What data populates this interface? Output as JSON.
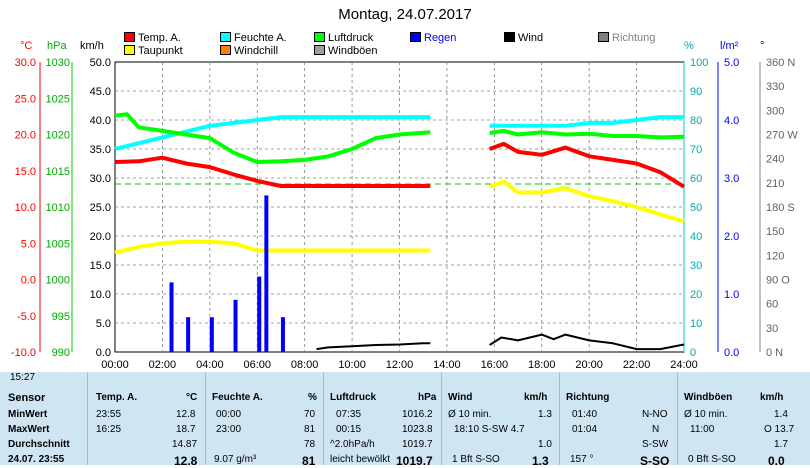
{
  "title": "Montag, 24.07.2017",
  "legend": [
    {
      "label": "Temp. A.",
      "color": "#ff0000"
    },
    {
      "label": "Feuchte A.",
      "color": "#00ffff"
    },
    {
      "label": "Luftdruck",
      "color": "#00ff00"
    },
    {
      "label": "Regen",
      "color": "#0000ff"
    },
    {
      "label": "Wind",
      "color": "#000000"
    },
    {
      "label": "Richtung",
      "color": "#808080"
    },
    {
      "label": "Taupunkt",
      "color": "#ffff00"
    },
    {
      "label": "Windchill",
      "color": "#ff8000"
    },
    {
      "label": "Windböen",
      "color": "#a0a0a0"
    }
  ],
  "axis_headers": {
    "c": "°C",
    "hpa": "hPa",
    "kmh": "km/h",
    "pct": "%",
    "lm2": "l/m²",
    "deg": "°"
  },
  "axes": {
    "temp": [
      "30.0",
      "25.0",
      "20.0",
      "15.0",
      "10.0",
      "5.0",
      "0.0",
      "-5.0",
      "-10.0"
    ],
    "hpa": [
      "1030",
      "1025",
      "1020",
      "1015",
      "1010",
      "1005",
      "1000",
      "995",
      "990"
    ],
    "kmh": [
      "50.0",
      "45.0",
      "40.0",
      "35.0",
      "30.0",
      "25.0",
      "20.0",
      "15.0",
      "10.0",
      "5.0",
      "0.0"
    ],
    "pct": [
      "100",
      "90",
      "80",
      "70",
      "60",
      "50",
      "40",
      "30",
      "20",
      "10",
      "0"
    ],
    "lm2": [
      "5.0",
      "4.0",
      "3.0",
      "2.0",
      "1.0",
      "0.0"
    ],
    "deg": [
      "360 N",
      "330",
      "300",
      "270 W",
      "240",
      "210",
      "180 S",
      "150",
      "120",
      "90 O",
      "60",
      "30",
      "0 N"
    ],
    "time": [
      "00:00",
      "02:00",
      "04:00",
      "06:00",
      "08:00",
      "10:00",
      "12:00",
      "14:00",
      "16:00",
      "18:00",
      "20:00",
      "22:00",
      "24:00"
    ]
  },
  "chart_data": {
    "type": "line",
    "x_unit": "hour",
    "series": [
      {
        "name": "Temp. A.",
        "color": "#ff0000",
        "x": [
          0,
          1,
          2,
          3,
          4,
          5,
          6,
          7,
          8,
          9,
          10,
          11,
          12,
          13.3,
          15.8,
          16.4,
          17,
          18,
          19,
          20,
          21,
          22,
          23,
          24
        ],
        "y": [
          16.2,
          16.3,
          16.8,
          16.0,
          15.5,
          14.5,
          13.6,
          12.9,
          12.9,
          12.9,
          12.9,
          12.9,
          12.9,
          12.9,
          18.0,
          18.7,
          17.6,
          17.2,
          18.2,
          17.0,
          16.5,
          16.0,
          14.8,
          12.8
        ]
      },
      {
        "name": "Taupunkt",
        "color": "#ffff00",
        "x": [
          0,
          1,
          2,
          3,
          4,
          5,
          6,
          7,
          8,
          9,
          10,
          11,
          12,
          13.3,
          15.8,
          16.4,
          17,
          18,
          19,
          20,
          21,
          22,
          23,
          24
        ],
        "y": [
          3.7,
          4.5,
          5.0,
          5.2,
          5.2,
          5.0,
          4.0,
          4.0,
          4.0,
          4.0,
          4.0,
          4.0,
          4.0,
          4.0,
          12.8,
          13.5,
          12.0,
          12.0,
          12.6,
          11.5,
          10.8,
          10.0,
          9.0,
          8.0
        ]
      },
      {
        "name": "Feuchte A.",
        "color": "#00ffff",
        "x": [
          0,
          1,
          2,
          3,
          4,
          5,
          6,
          7,
          8,
          9,
          10,
          11,
          12,
          13.3,
          15.8,
          17,
          18,
          19,
          20,
          21,
          22,
          23,
          24
        ],
        "y": [
          70,
          72,
          74,
          76,
          78,
          79,
          80,
          81,
          81,
          81,
          81,
          81,
          81,
          81,
          78,
          78,
          78,
          78,
          79,
          79,
          80,
          81,
          81
        ]
      },
      {
        "name": "Luftdruck",
        "color": "#00ff00",
        "x": [
          0,
          0.5,
          1,
          2,
          3,
          4,
          5,
          6,
          7,
          8,
          9,
          10,
          11,
          12,
          13.3,
          15.8,
          16.4,
          17,
          18,
          19,
          20,
          21,
          22,
          23,
          24
        ],
        "y": [
          1022.6,
          1022.8,
          1021.0,
          1020.5,
          1020.0,
          1019.5,
          1017.5,
          1016.2,
          1016.3,
          1016.5,
          1017.0,
          1018.0,
          1019.5,
          1020.0,
          1020.3,
          1020.2,
          1020.5,
          1020.0,
          1020.3,
          1020.0,
          1020.1,
          1019.8,
          1019.8,
          1019.6,
          1019.7
        ]
      },
      {
        "name": "Wind",
        "color": "#000000",
        "x": [
          8.5,
          9,
          10,
          11,
          12,
          13,
          13.3,
          15.8,
          16.3,
          17,
          18,
          18.5,
          19,
          20,
          21,
          22,
          23,
          24
        ],
        "y": [
          0.5,
          0.8,
          1.0,
          1.2,
          1.3,
          1.5,
          1.5,
          1.2,
          2.5,
          2.0,
          3.0,
          2.2,
          3.0,
          2.0,
          1.5,
          0.5,
          0.5,
          1.3
        ]
      },
      {
        "name": "Regen",
        "color": "#0000ff",
        "x": [
          2.3,
          3,
          4,
          5,
          6,
          6.3,
          7
        ],
        "y": [
          1.2,
          0.6,
          0.6,
          0.9,
          1.3,
          2.7,
          0.6
        ]
      }
    ]
  },
  "status": {
    "badge_time": "15:27",
    "rows": [
      "Sensor",
      "MinWert",
      "MaxWert",
      "Durchschnitt",
      "24.07. 23:55"
    ],
    "temp": {
      "head": "Temp. A.",
      "unit": "°C",
      "vals": [
        [
          "23:55",
          "12.8"
        ],
        [
          "16:25",
          "18.7"
        ],
        [
          "",
          "14.87"
        ],
        [
          "",
          "12.8"
        ]
      ]
    },
    "hum": {
      "head": "Feuchte A.",
      "unit": "%",
      "vals": [
        [
          "00:00",
          "70"
        ],
        [
          "23:00",
          "81"
        ],
        [
          "",
          "78"
        ],
        [
          "9.07 g/m³",
          "81"
        ]
      ]
    },
    "press": {
      "head": "Luftdruck",
      "unit": "hPa",
      "vals": [
        [
          "07:35",
          "1016.2"
        ],
        [
          "00:15",
          "1023.8"
        ],
        [
          "^2.0hPa/h",
          "1019.7"
        ],
        [
          "leicht bewölkt",
          "1019.7"
        ]
      ]
    },
    "wind": {
      "head": "Wind",
      "unit": "km/h",
      "vals": [
        [
          "Ø 10 min.",
          "1.3"
        ],
        [
          "18:10 S-SW 4.7",
          ""
        ],
        [
          "",
          "1.0"
        ],
        [
          "1 Bft S-SO",
          "1.3"
        ]
      ]
    },
    "dir": {
      "head": "Richtung",
      "vals": [
        [
          "01:40",
          "N-NO"
        ],
        [
          "01:04",
          "N"
        ],
        [
          "",
          "S-SW"
        ],
        [
          "157 °",
          "S-SO"
        ]
      ]
    },
    "gust": {
      "head": "Windböen",
      "unit": "km/h",
      "vals": [
        [
          "Ø 10 min.",
          "1.4"
        ],
        [
          "11:00",
          "O 13.7"
        ],
        [
          "",
          "1.7"
        ],
        [
          "0 Bft S-SO",
          "0.0"
        ]
      ]
    }
  }
}
